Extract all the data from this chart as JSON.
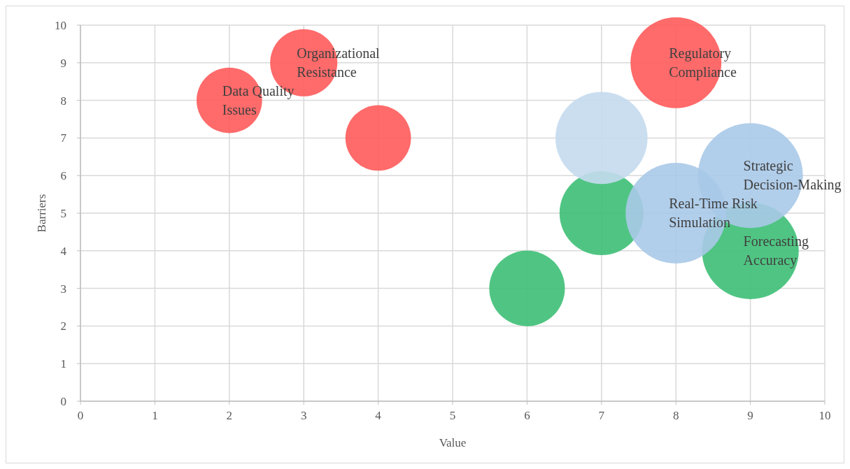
{
  "chart_data": {
    "type": "bubble",
    "xlabel": "Value",
    "ylabel": "Barriers",
    "xlim": [
      0,
      10
    ],
    "xticks": [
      0,
      1,
      2,
      3,
      4,
      5,
      6,
      7,
      8,
      9,
      10
    ],
    "ylim": [
      0,
      10
    ],
    "yticks": [
      0,
      1,
      2,
      3,
      4,
      5,
      6,
      7,
      8,
      9,
      10
    ],
    "grid": true,
    "series": [
      {
        "color": "#ff5a5a",
        "x": [
          2,
          3,
          4,
          8
        ],
        "values": [
          8,
          9,
          7,
          9
        ],
        "sizes": [
          0.39,
          0.41,
          0.39,
          0.75
        ]
      },
      {
        "color": "#3dbf75",
        "x": [
          6,
          7,
          9
        ],
        "values": [
          3,
          5,
          4
        ],
        "sizes": [
          0.52,
          0.64,
          0.85
        ]
      },
      {
        "colors": [
          "#c4daee",
          "#a9c9e8",
          "#a9c9e8"
        ],
        "x": [
          7,
          8,
          9
        ],
        "values": [
          7,
          5,
          6
        ],
        "sizes": [
          0.77,
          0.92,
          1
        ]
      }
    ],
    "annotations": [
      {
        "text": "Data Quality\nIssues",
        "x": 2,
        "y": 8
      },
      {
        "text": "Organizational\nResistance",
        "x": 3,
        "y": 9
      },
      {
        "text": "Regulatory\nCompliance",
        "x": 8,
        "y": 9
      },
      {
        "text": "Strategic\nDecision-Making",
        "x": 9,
        "y": 6
      },
      {
        "text": "Real-Time Risk\nSimulation",
        "x": 8,
        "y": 5
      },
      {
        "text": "Forecasting\nAccuracy",
        "x": 9,
        "y": 4
      }
    ]
  }
}
